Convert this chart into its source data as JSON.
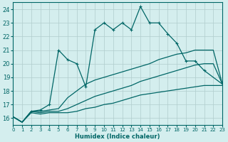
{
  "xlabel": "Humidex (Indice chaleur)",
  "xlim": [
    0,
    23
  ],
  "ylim": [
    15.5,
    24.5
  ],
  "xticks": [
    0,
    1,
    2,
    3,
    4,
    5,
    6,
    7,
    8,
    9,
    10,
    11,
    12,
    13,
    14,
    15,
    16,
    17,
    18,
    19,
    20,
    21,
    22,
    23
  ],
  "yticks": [
    16,
    17,
    18,
    19,
    20,
    21,
    22,
    23,
    24
  ],
  "bg_color": "#d4eeee",
  "grid_color": "#b0cccc",
  "line_color": "#006666",
  "line_main_x": [
    0,
    1,
    2,
    3,
    4,
    5,
    6,
    7,
    8,
    9,
    10,
    11,
    12,
    13,
    14,
    15,
    16,
    17,
    18,
    19,
    20,
    21,
    22,
    23
  ],
  "line_main_y": [
    16.1,
    15.7,
    16.5,
    16.6,
    17.0,
    21.0,
    20.3,
    20.0,
    18.3,
    22.5,
    23.0,
    22.5,
    23.0,
    22.5,
    24.2,
    23.0,
    23.0,
    22.2,
    21.5,
    20.2,
    20.2,
    19.5,
    19.0,
    18.5
  ],
  "line_upper_x": [
    0,
    1,
    2,
    3,
    4,
    5,
    6,
    7,
    8,
    9,
    10,
    11,
    12,
    13,
    14,
    15,
    16,
    17,
    18,
    19,
    20,
    21,
    22,
    23
  ],
  "line_upper_y": [
    16.1,
    15.7,
    16.5,
    16.5,
    16.6,
    16.7,
    17.5,
    18.0,
    18.5,
    18.8,
    19.0,
    19.2,
    19.4,
    19.6,
    19.8,
    20.0,
    20.3,
    20.5,
    20.7,
    20.8,
    21.0,
    21.0,
    21.0,
    18.5
  ],
  "line_middle_x": [
    0,
    1,
    2,
    3,
    4,
    5,
    6,
    7,
    8,
    9,
    10,
    11,
    12,
    13,
    14,
    15,
    16,
    17,
    18,
    19,
    20,
    21,
    22,
    23
  ],
  "line_middle_y": [
    16.1,
    15.7,
    16.5,
    16.4,
    16.5,
    16.5,
    16.7,
    17.0,
    17.3,
    17.6,
    17.8,
    18.0,
    18.2,
    18.4,
    18.7,
    18.9,
    19.1,
    19.3,
    19.5,
    19.7,
    19.9,
    20.0,
    20.0,
    18.5
  ],
  "line_lower_x": [
    0,
    1,
    2,
    3,
    4,
    5,
    6,
    7,
    8,
    9,
    10,
    11,
    12,
    13,
    14,
    15,
    16,
    17,
    18,
    19,
    20,
    21,
    22,
    23
  ],
  "line_lower_y": [
    16.1,
    15.7,
    16.4,
    16.3,
    16.4,
    16.4,
    16.4,
    16.5,
    16.7,
    16.8,
    17.0,
    17.1,
    17.3,
    17.5,
    17.7,
    17.8,
    17.9,
    18.0,
    18.1,
    18.2,
    18.3,
    18.4,
    18.4,
    18.4
  ],
  "marker_main_x": [
    2,
    3,
    4,
    5,
    6,
    7,
    8,
    9,
    10,
    11,
    12,
    13,
    14,
    15,
    16,
    17,
    18,
    19,
    20,
    21
  ],
  "marker_main_y": [
    16.5,
    16.6,
    17.0,
    21.0,
    20.3,
    20.0,
    18.3,
    22.5,
    23.0,
    22.5,
    23.0,
    22.5,
    24.2,
    23.0,
    23.0,
    22.2,
    21.5,
    20.2,
    20.2,
    19.5
  ]
}
